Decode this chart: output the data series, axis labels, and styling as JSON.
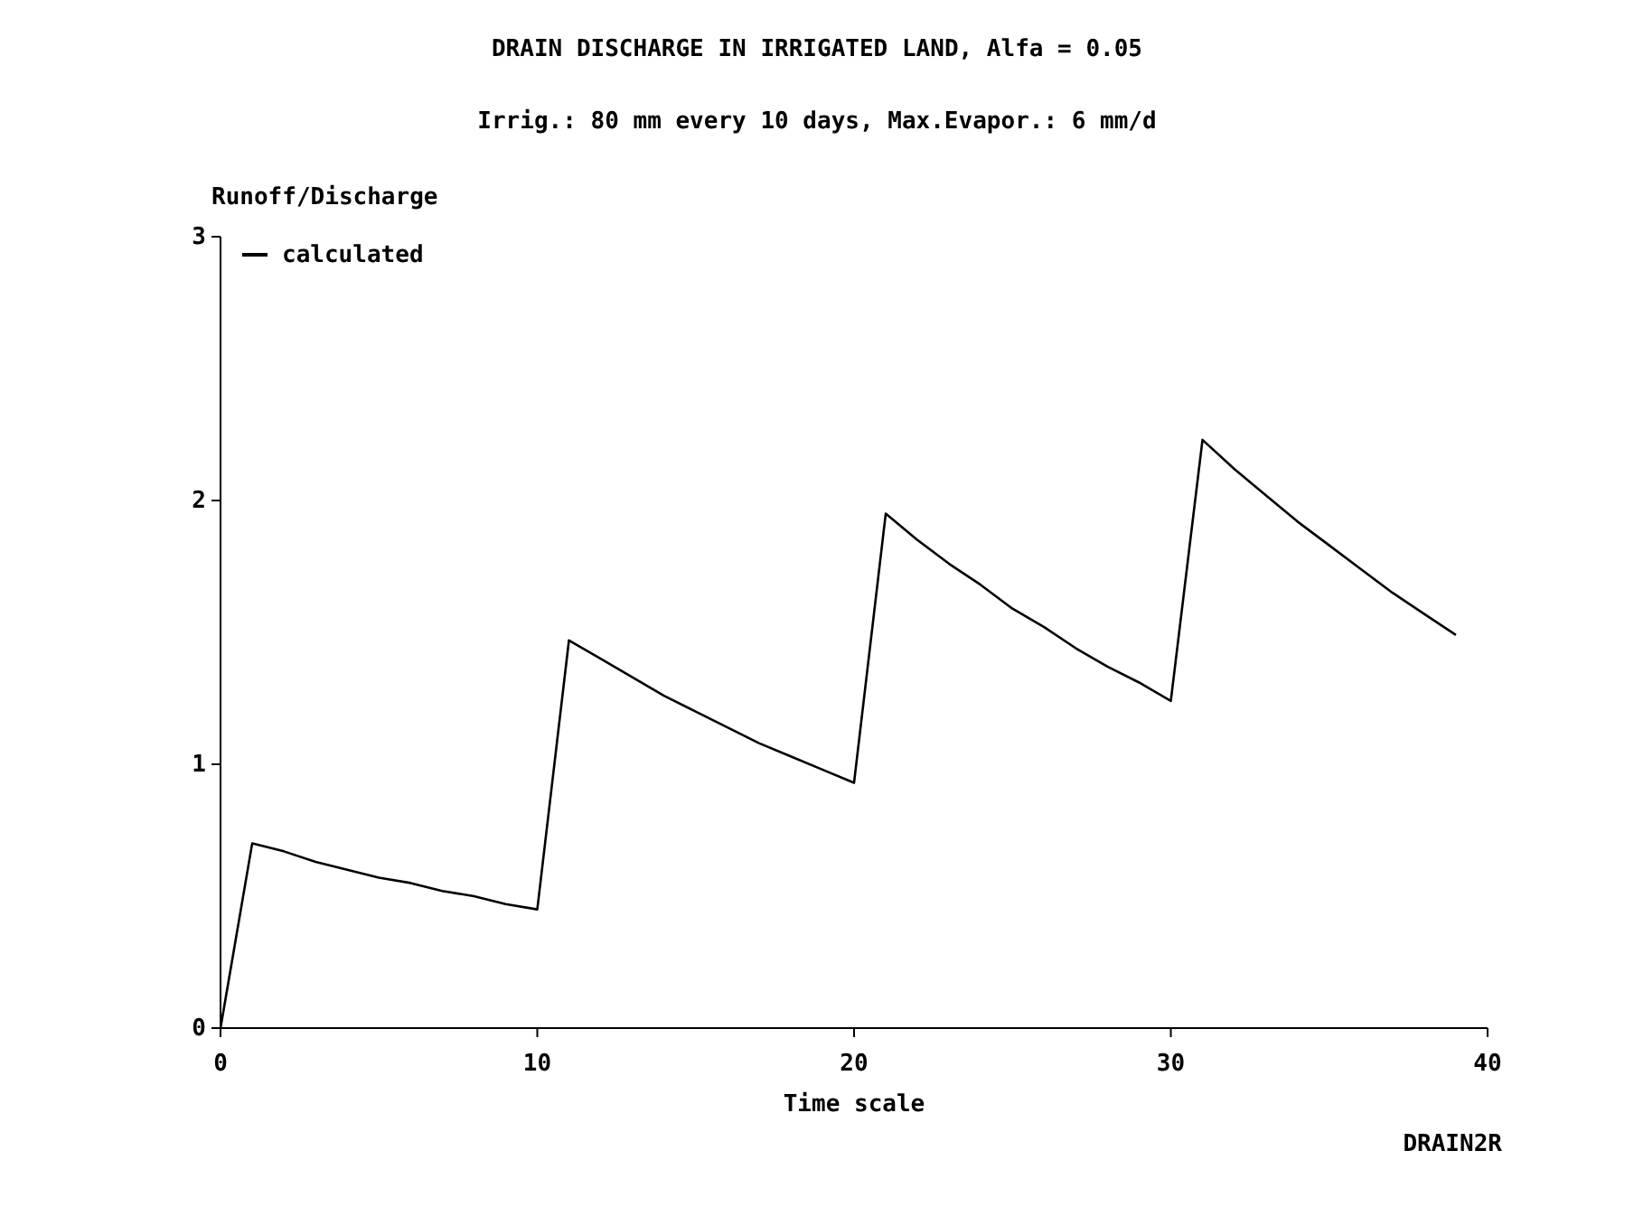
{
  "chart_data": {
    "type": "line",
    "title": "DRAIN DISCHARGE IN IRRIGATED LAND, Alfa = 0.05",
    "subtitle": "Irrig.: 80 mm every 10 days, Max.Evapor.: 6 mm/d",
    "xlabel": "Time scale",
    "ylabel": "Runoff/Discharge",
    "annotations": [
      "DRAIN2R"
    ],
    "x": [
      0,
      1,
      2,
      3,
      4,
      5,
      6,
      7,
      8,
      9,
      10,
      11,
      12,
      13,
      14,
      15,
      16,
      17,
      18,
      19,
      20,
      21,
      22,
      23,
      24,
      25,
      26,
      27,
      28,
      29,
      30,
      31,
      32,
      33,
      34,
      35,
      36,
      37,
      38,
      39
    ],
    "series": [
      {
        "name": "calculated",
        "color": "#000000",
        "values": [
          0,
          0.7,
          0.67,
          0.63,
          0.6,
          0.57,
          0.55,
          0.52,
          0.5,
          0.47,
          0.45,
          1.47,
          1.4,
          1.33,
          1.26,
          1.2,
          1.14,
          1.08,
          1.03,
          0.98,
          0.93,
          1.95,
          1.85,
          1.76,
          1.68,
          1.59,
          1.52,
          1.44,
          1.37,
          1.31,
          1.24,
          2.23,
          2.12,
          2.02,
          1.92,
          1.83,
          1.74,
          1.65,
          1.57,
          1.49
        ]
      }
    ],
    "xlim": [
      0,
      40
    ],
    "xticks": [
      0,
      10,
      20,
      30,
      40
    ],
    "ylim": [
      0,
      3
    ],
    "yticks": [
      0,
      1,
      2,
      3
    ],
    "grid": false,
    "legend": "top left",
    "marker": "none",
    "line_style": "solid"
  }
}
